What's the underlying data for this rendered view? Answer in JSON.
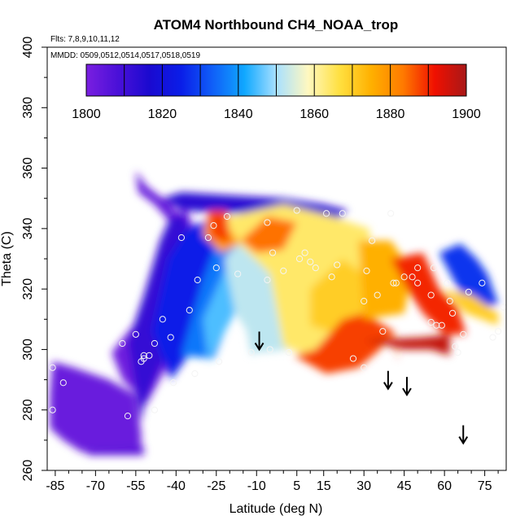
{
  "chart_data": {
    "type": "heatmap",
    "title": "ATOM4 Northbound CH4_NOAA_trop",
    "flights_note": "Flts: 7,8,9,10,11,12",
    "dates_note": "MMDD: 0509,0512,0514,0517,0518,0519",
    "xlabel": "Latitude (deg N)",
    "ylabel": "Theta (C)",
    "xlim": [
      -88,
      83
    ],
    "ylim": [
      260,
      400
    ],
    "x_ticks": [
      -85,
      -70,
      -55,
      -40,
      -25,
      -10,
      5,
      15,
      30,
      45,
      60,
      75
    ],
    "y_ticks": [
      260,
      280,
      300,
      320,
      340,
      360,
      380,
      400
    ],
    "colorbar": {
      "range": [
        1800,
        1900
      ],
      "ticks": [
        1800,
        1820,
        1840,
        1860,
        1880,
        1900
      ],
      "colors": [
        "#7a1fe0",
        "#4a10d8",
        "#1a0ad0",
        "#0a1ee8",
        "#1060f8",
        "#10a8ff",
        "#a8e0ff",
        "#fff8c0",
        "#ffe040",
        "#ffb000",
        "#ff7a00",
        "#f01000",
        "#a81818"
      ]
    },
    "regions": [
      {
        "name": "purple-south",
        "value": 1803,
        "poly": [
          [
            -86,
            296
          ],
          [
            -78,
            294
          ],
          [
            -65,
            290
          ],
          [
            -55,
            285
          ],
          [
            -53,
            272
          ],
          [
            -53,
            267
          ],
          [
            -75,
            266
          ],
          [
            -82,
            270
          ],
          [
            -87,
            274
          ],
          [
            -87,
            285
          ]
        ]
      },
      {
        "name": "purple-tail",
        "value": 1805,
        "poly": [
          [
            -73,
            267
          ],
          [
            -52,
            268
          ],
          [
            -52,
            265
          ],
          [
            -73,
            265
          ]
        ]
      },
      {
        "name": "purple-wedge",
        "value": 1802,
        "poly": [
          [
            -64,
            299
          ],
          [
            -55,
            309
          ],
          [
            -47,
            322
          ],
          [
            -42,
            340
          ],
          [
            -37,
            348
          ],
          [
            -31,
            335
          ],
          [
            -36,
            312
          ],
          [
            -43,
            295
          ],
          [
            -51,
            282
          ],
          [
            -60,
            290
          ]
        ]
      },
      {
        "name": "purple-top",
        "value": 1804,
        "poly": [
          [
            -55,
            359
          ],
          [
            -51,
            354
          ],
          [
            -42,
            348
          ],
          [
            -35,
            340
          ],
          [
            -42,
            342
          ],
          [
            -48,
            348
          ],
          [
            -54,
            352
          ]
        ]
      },
      {
        "name": "blue-dark",
        "value": 1812,
        "poly": [
          [
            -58,
            302
          ],
          [
            -52,
            318
          ],
          [
            -46,
            336
          ],
          [
            -42,
            344
          ],
          [
            -36,
            344
          ],
          [
            -35,
            325
          ],
          [
            -40,
            305
          ],
          [
            -47,
            292
          ],
          [
            -52,
            281
          ],
          [
            -53,
            276
          ]
        ]
      },
      {
        "name": "blue-mid",
        "value": 1825,
        "poly": [
          [
            -49,
            306
          ],
          [
            -43,
            330
          ],
          [
            -36,
            340
          ],
          [
            -25,
            344
          ],
          [
            -20,
            337
          ],
          [
            -26,
            316
          ],
          [
            -33,
            301
          ],
          [
            -42,
            290
          ]
        ]
      },
      {
        "name": "cyan-band",
        "value": 1836,
        "poly": [
          [
            -38,
            298
          ],
          [
            -30,
            323
          ],
          [
            -22,
            342
          ],
          [
            -12,
            346
          ],
          [
            -15,
            330
          ],
          [
            -20,
            310
          ],
          [
            -26,
            297
          ]
        ]
      },
      {
        "name": "blue-top",
        "value": 1814,
        "poly": [
          [
            -45,
            350
          ],
          [
            -38,
            352
          ],
          [
            -20,
            351
          ],
          [
            0,
            350
          ],
          [
            15,
            348
          ],
          [
            24,
            346
          ],
          [
            20,
            343
          ],
          [
            0,
            345
          ],
          [
            -20,
            345
          ],
          [
            -38,
            346
          ]
        ]
      },
      {
        "name": "bluewhite",
        "value": 1845,
        "poly": [
          [
            -28,
            296
          ],
          [
            -15,
            317
          ],
          [
            -2,
            334
          ],
          [
            -10,
            341
          ],
          [
            -20,
            330
          ],
          [
            -30,
            310
          ]
        ]
      },
      {
        "name": "lightblue-mid",
        "value": 1852,
        "poly": [
          [
            -22,
            330
          ],
          [
            -14,
            338
          ],
          [
            -8,
            326
          ],
          [
            0,
            312
          ],
          [
            2,
            300
          ],
          [
            -8,
            299
          ],
          [
            -18,
            312
          ]
        ]
      },
      {
        "name": "white-center",
        "value": 1852,
        "poly": [
          [
            -12,
            298
          ],
          [
            0,
            303
          ],
          [
            5,
            321
          ],
          [
            -2,
            332
          ],
          [
            -10,
            327
          ],
          [
            -15,
            312
          ]
        ]
      },
      {
        "name": "gold-fill",
        "value": 1864,
        "poly": [
          [
            -25,
            343
          ],
          [
            0,
            348
          ],
          [
            18,
            344
          ],
          [
            32,
            340
          ],
          [
            33,
            320
          ],
          [
            22,
            308
          ],
          [
            10,
            298
          ],
          [
            0,
            301
          ],
          [
            -5,
            325
          ],
          [
            -20,
            338
          ]
        ]
      },
      {
        "name": "orange-core",
        "value": 1870,
        "poly": [
          [
            10,
            320
          ],
          [
            22,
            330
          ],
          [
            30,
            325
          ],
          [
            30,
            312
          ],
          [
            20,
            305
          ],
          [
            10,
            308
          ]
        ]
      },
      {
        "name": "redorange-south",
        "value": 1878,
        "poly": [
          [
            -28,
            345
          ],
          [
            -22,
            342
          ],
          [
            -16,
            335
          ],
          [
            -23,
            332
          ],
          [
            -30,
            338
          ]
        ]
      },
      {
        "name": "red-hot",
        "value": 1888,
        "poly": [
          [
            -28,
            346
          ],
          [
            -21,
            346
          ],
          [
            -20,
            335
          ],
          [
            -27,
            337
          ]
        ]
      },
      {
        "name": "red-strip",
        "value": 1884,
        "poly": [
          [
            -16,
            336
          ],
          [
            -6,
            344
          ],
          [
            5,
            342
          ],
          [
            0,
            333
          ],
          [
            -10,
            332
          ]
        ]
      },
      {
        "name": "red-east",
        "value": 1888,
        "poly": [
          [
            4,
            298
          ],
          [
            16,
            292
          ],
          [
            28,
            294
          ],
          [
            36,
            300
          ],
          [
            40,
            305
          ],
          [
            43,
            296
          ],
          [
            41,
            306
          ],
          [
            30,
            312
          ],
          [
            22,
            310
          ],
          [
            12,
            300
          ]
        ]
      },
      {
        "name": "darkred-east",
        "value": 1897,
        "poly": [
          [
            30,
            303
          ],
          [
            52,
            304
          ],
          [
            62,
            305
          ],
          [
            62,
            298
          ],
          [
            55,
            300
          ],
          [
            45,
            300
          ],
          [
            35,
            302
          ]
        ]
      },
      {
        "name": "orange-east",
        "value": 1875,
        "poly": [
          [
            28,
            336
          ],
          [
            40,
            336
          ],
          [
            48,
            326
          ],
          [
            45,
            312
          ],
          [
            30,
            310
          ]
        ]
      },
      {
        "name": "red-bands",
        "value": 1890,
        "poly": [
          [
            40,
            330
          ],
          [
            52,
            332
          ],
          [
            58,
            320
          ],
          [
            65,
            314
          ],
          [
            68,
            305
          ],
          [
            60,
            305
          ],
          [
            52,
            312
          ],
          [
            46,
            320
          ]
        ]
      },
      {
        "name": "blue-east",
        "value": 1828,
        "poly": [
          [
            58,
            332
          ],
          [
            66,
            335
          ],
          [
            72,
            330
          ],
          [
            76,
            325
          ],
          [
            80,
            315
          ],
          [
            70,
            313
          ],
          [
            64,
            322
          ]
        ]
      },
      {
        "name": "orange-ribbon",
        "value": 1870,
        "poly": [
          [
            60,
            320
          ],
          [
            70,
            318
          ],
          [
            80,
            312
          ],
          [
            80,
            308
          ],
          [
            68,
            312
          ]
        ]
      }
    ],
    "samples": [
      {
        "lat": -86,
        "theta": 294
      },
      {
        "lat": -86,
        "theta": 280
      },
      {
        "lat": -82,
        "theta": 289
      },
      {
        "lat": -60,
        "theta": 302
      },
      {
        "lat": -58,
        "theta": 278
      },
      {
        "lat": -55,
        "theta": 305
      },
      {
        "lat": -53,
        "theta": 296
      },
      {
        "lat": -52,
        "theta": 298
      },
      {
        "lat": -52,
        "theta": 297
      },
      {
        "lat": -50,
        "theta": 298
      },
      {
        "lat": -48,
        "theta": 302
      },
      {
        "lat": -48,
        "theta": 280
      },
      {
        "lat": -45,
        "theta": 310
      },
      {
        "lat": -42,
        "theta": 304
      },
      {
        "lat": -41,
        "theta": 289
      },
      {
        "lat": -38,
        "theta": 337
      },
      {
        "lat": -35,
        "theta": 313
      },
      {
        "lat": -33,
        "theta": 292
      },
      {
        "lat": -32,
        "theta": 323
      },
      {
        "lat": -28,
        "theta": 337
      },
      {
        "lat": -26,
        "theta": 341
      },
      {
        "lat": -25,
        "theta": 327
      },
      {
        "lat": -24,
        "theta": 296
      },
      {
        "lat": -21,
        "theta": 344
      },
      {
        "lat": -17,
        "theta": 325
      },
      {
        "lat": -12,
        "theta": 299
      },
      {
        "lat": -6,
        "theta": 342
      },
      {
        "lat": -6,
        "theta": 323
      },
      {
        "lat": -5,
        "theta": 300
      },
      {
        "lat": -4,
        "theta": 332
      },
      {
        "lat": 0,
        "theta": 326
      },
      {
        "lat": 2,
        "theta": 299
      },
      {
        "lat": 5,
        "theta": 346
      },
      {
        "lat": 6,
        "theta": 330
      },
      {
        "lat": 8,
        "theta": 332
      },
      {
        "lat": 10,
        "theta": 329
      },
      {
        "lat": 12,
        "theta": 327
      },
      {
        "lat": 16,
        "theta": 345
      },
      {
        "lat": 18,
        "theta": 324
      },
      {
        "lat": 20,
        "theta": 328
      },
      {
        "lat": 22,
        "theta": 345
      },
      {
        "lat": 26,
        "theta": 297
      },
      {
        "lat": 30,
        "theta": 294
      },
      {
        "lat": 30,
        "theta": 316
      },
      {
        "lat": 31,
        "theta": 326
      },
      {
        "lat": 33,
        "theta": 336
      },
      {
        "lat": 35,
        "theta": 318
      },
      {
        "lat": 37,
        "theta": 306
      },
      {
        "lat": 40,
        "theta": 345
      },
      {
        "lat": 41,
        "theta": 322
      },
      {
        "lat": 42,
        "theta": 322
      },
      {
        "lat": 45,
        "theta": 324
      },
      {
        "lat": 48,
        "theta": 324
      },
      {
        "lat": 50,
        "theta": 322
      },
      {
        "lat": 50,
        "theta": 327
      },
      {
        "lat": 55,
        "theta": 318
      },
      {
        "lat": 55,
        "theta": 309
      },
      {
        "lat": 56,
        "theta": 327
      },
      {
        "lat": 57,
        "theta": 308
      },
      {
        "lat": 59,
        "theta": 308
      },
      {
        "lat": 61,
        "theta": 322
      },
      {
        "lat": 62,
        "theta": 316
      },
      {
        "lat": 63,
        "theta": 312
      },
      {
        "lat": 64,
        "theta": 301
      },
      {
        "lat": 65,
        "theta": 299
      },
      {
        "lat": 67,
        "theta": 305
      },
      {
        "lat": 69,
        "theta": 319
      },
      {
        "lat": 74,
        "theta": 322
      },
      {
        "lat": 78,
        "theta": 304
      },
      {
        "lat": 80,
        "theta": 306
      },
      {
        "lat": 82,
        "theta": 314
      }
    ],
    "arrows": [
      {
        "lat": -9,
        "theta": 300
      },
      {
        "lat": 39,
        "theta": 287
      },
      {
        "lat": 46,
        "theta": 285
      },
      {
        "lat": 67,
        "theta": 269
      }
    ]
  }
}
